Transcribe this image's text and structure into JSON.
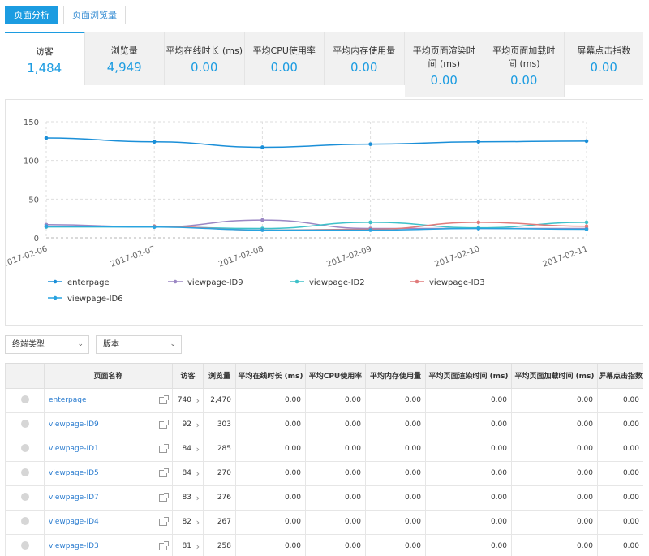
{
  "tabs": [
    {
      "label": "页面分析",
      "active": true
    },
    {
      "label": "页面浏览量",
      "active": false
    }
  ],
  "metrics": [
    {
      "label": "访客",
      "value": "1,484",
      "active": true
    },
    {
      "label": "浏览量",
      "value": "4,949"
    },
    {
      "label": "平均在线时长 (ms)",
      "value": "0.00"
    },
    {
      "label": "平均CPU使用率",
      "value": "0.00"
    },
    {
      "label": "平均内存使用量",
      "value": "0.00"
    },
    {
      "label": "平均页面渲染时间 (ms)",
      "value": "0.00"
    },
    {
      "label": "平均页面加载时间 (ms)",
      "value": "0.00"
    },
    {
      "label": "屏幕点击指数",
      "value": "0.00"
    }
  ],
  "chart_data": {
    "type": "line",
    "x": [
      "2017-02-06",
      "2017-02-07",
      "2017-02-08",
      "2017-02-09",
      "2017-02-10",
      "2017-02-11"
    ],
    "ylim": [
      0,
      150
    ],
    "yticks": [
      0,
      50,
      100,
      150
    ],
    "grid": true,
    "legend_position": "bottom",
    "series": [
      {
        "name": "enterpage",
        "color": "#1b8fd8",
        "values": [
          129,
          124,
          117,
          121,
          124,
          125
        ]
      },
      {
        "name": "viewpage-ID9",
        "color": "#9b87c4",
        "values": [
          17,
          14,
          23,
          12,
          12,
          12
        ]
      },
      {
        "name": "viewpage-ID2",
        "color": "#3ec1c9",
        "values": [
          14,
          14,
          12,
          20,
          13,
          20
        ]
      },
      {
        "name": "viewpage-ID3",
        "color": "#e07b7b",
        "values": [
          15,
          15,
          10,
          11,
          20,
          15
        ]
      },
      {
        "name": "viewpage-ID6",
        "color": "#29a3e0",
        "values": [
          15,
          14,
          10,
          10,
          12,
          11
        ]
      }
    ]
  },
  "filters": [
    {
      "label": "终端类型"
    },
    {
      "label": "版本"
    }
  ],
  "table": {
    "headers": [
      "",
      "页面名称",
      "访客",
      "浏览量",
      "平均在线时长 (ms)",
      "平均CPU使用率",
      "平均内存使用量",
      "平均页面渲染时间 (ms)",
      "平均页面加载时间 (ms)",
      "屏幕点击指数"
    ],
    "rows": [
      {
        "name": "enterpage",
        "visitors": "740",
        "views": "2,470",
        "online": "0.00",
        "cpu": "0.00",
        "mem": "0.00",
        "render": "0.00",
        "load": "0.00",
        "click": "0.00"
      },
      {
        "name": "viewpage-ID9",
        "visitors": "92",
        "views": "303",
        "online": "0.00",
        "cpu": "0.00",
        "mem": "0.00",
        "render": "0.00",
        "load": "0.00",
        "click": "0.00"
      },
      {
        "name": "viewpage-ID1",
        "visitors": "84",
        "views": "285",
        "online": "0.00",
        "cpu": "0.00",
        "mem": "0.00",
        "render": "0.00",
        "load": "0.00",
        "click": "0.00"
      },
      {
        "name": "viewpage-ID5",
        "visitors": "84",
        "views": "270",
        "online": "0.00",
        "cpu": "0.00",
        "mem": "0.00",
        "render": "0.00",
        "load": "0.00",
        "click": "0.00"
      },
      {
        "name": "viewpage-ID7",
        "visitors": "83",
        "views": "276",
        "online": "0.00",
        "cpu": "0.00",
        "mem": "0.00",
        "render": "0.00",
        "load": "0.00",
        "click": "0.00"
      },
      {
        "name": "viewpage-ID4",
        "visitors": "82",
        "views": "267",
        "online": "0.00",
        "cpu": "0.00",
        "mem": "0.00",
        "render": "0.00",
        "load": "0.00",
        "click": "0.00"
      },
      {
        "name": "viewpage-ID3",
        "visitors": "81",
        "views": "258",
        "online": "0.00",
        "cpu": "0.00",
        "mem": "0.00",
        "render": "0.00",
        "load": "0.00",
        "click": "0.00"
      }
    ]
  }
}
